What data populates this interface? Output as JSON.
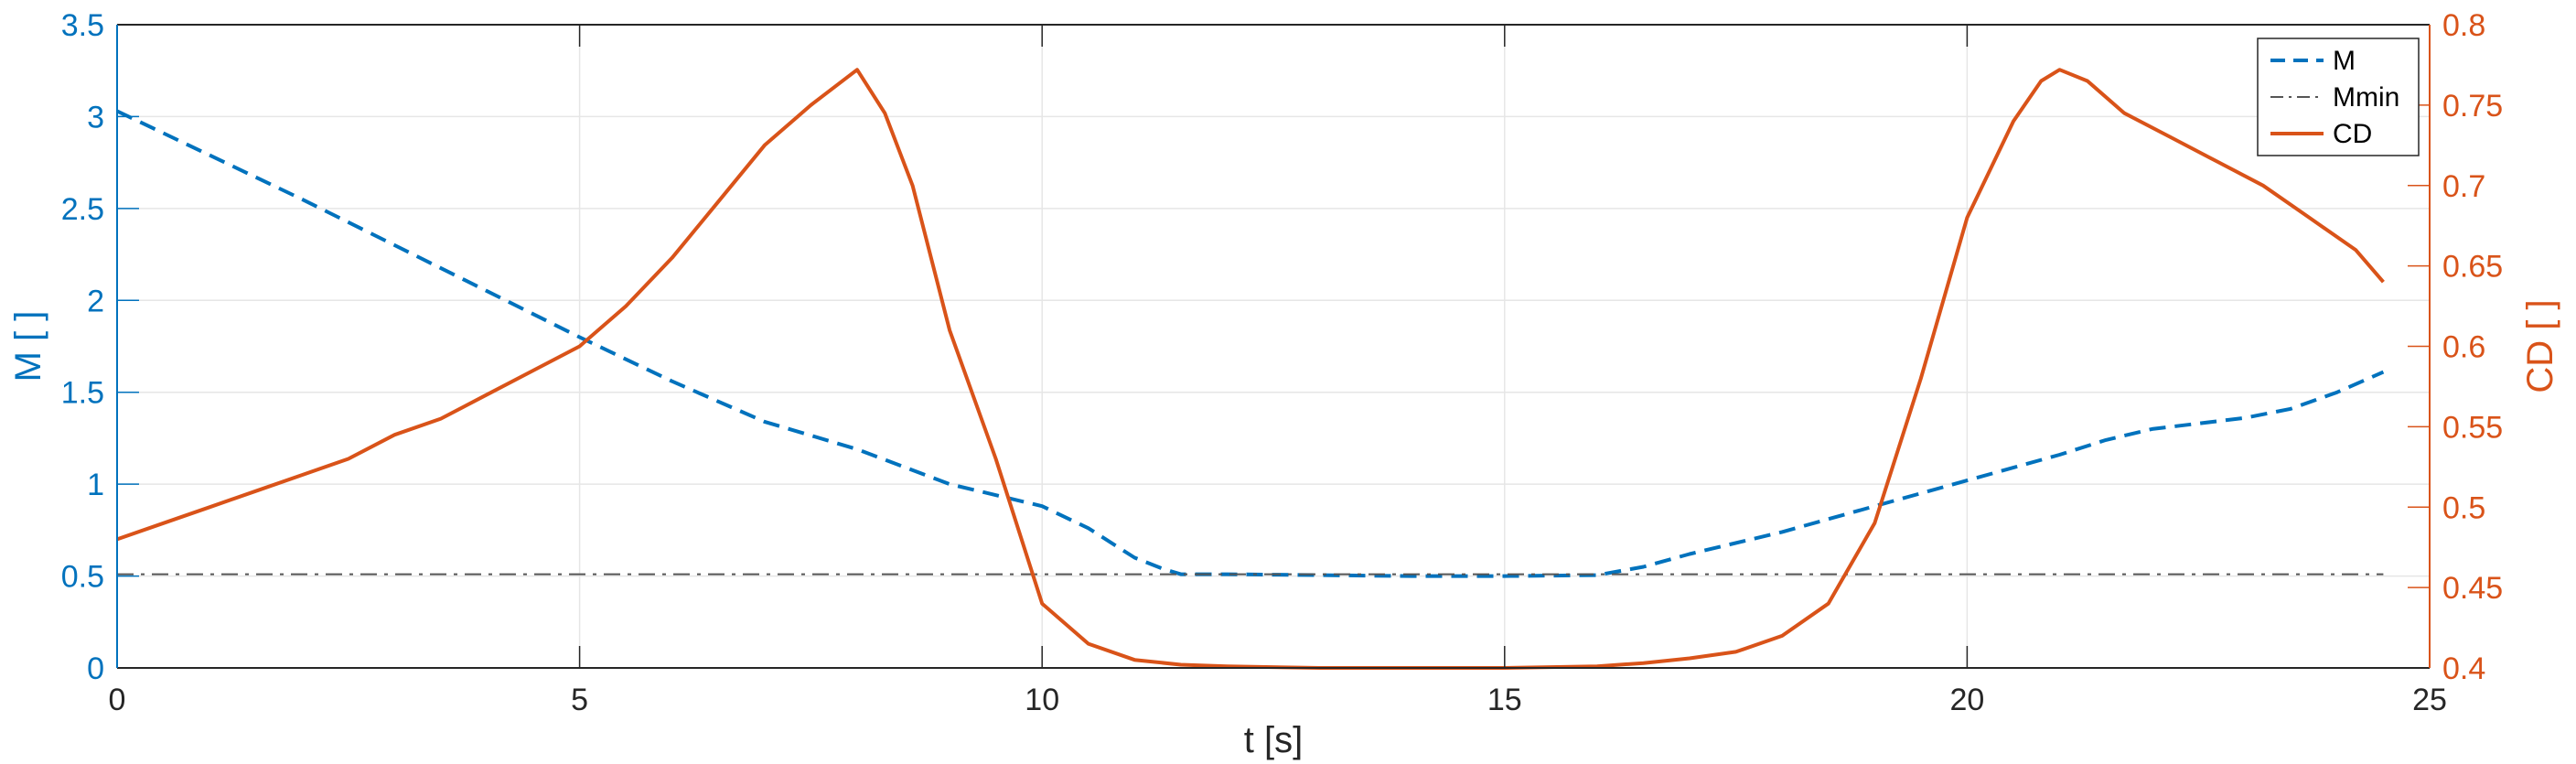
{
  "chart_data": {
    "type": "line",
    "title": "",
    "xlabel": "t [s]",
    "ylabel_left": "M [ ]",
    "ylabel_right": "CD [ ]",
    "xlim": [
      0,
      25
    ],
    "ylim_left": [
      0,
      3.5
    ],
    "ylim_right": [
      0.4,
      0.8
    ],
    "xticks": [
      "0",
      "5",
      "10",
      "15",
      "20",
      "25"
    ],
    "yticks_left": [
      "0",
      "0.5",
      "1",
      "1.5",
      "2",
      "2.5",
      "3",
      "3.5"
    ],
    "yticks_right": [
      "0.4",
      "0.45",
      "0.5",
      "0.55",
      "0.6",
      "0.65",
      "0.7",
      "0.75",
      "0.8"
    ],
    "grid": true,
    "legend_position": "top-right",
    "colors": {
      "left_axis": "#0072BD",
      "right_axis": "#D95319",
      "mmin": "#555555",
      "axes": "#262626",
      "grid": "#E6E6E6"
    },
    "series": [
      {
        "name": "M",
        "axis": "left",
        "style": "dashed",
        "color": "#0072BD",
        "x": [
          0,
          1,
          2,
          3,
          4,
          5,
          6,
          7,
          8,
          9,
          10,
          10.5,
          11,
          11.3,
          11.5,
          12,
          13,
          14,
          15,
          16,
          16.5,
          17,
          18,
          19,
          20,
          21,
          21.5,
          22,
          23,
          23.5,
          24,
          24.5
        ],
        "y": [
          3.03,
          2.79,
          2.55,
          2.3,
          2.05,
          1.8,
          1.56,
          1.34,
          1.19,
          1.0,
          0.88,
          0.76,
          0.6,
          0.54,
          0.51,
          0.51,
          0.505,
          0.5,
          0.5,
          0.505,
          0.55,
          0.62,
          0.74,
          0.88,
          1.02,
          1.16,
          1.24,
          1.3,
          1.36,
          1.41,
          1.5,
          1.61
        ]
      },
      {
        "name": "Mmin",
        "axis": "left",
        "style": "dashdot",
        "color": "#555555",
        "x": [
          0,
          24.5
        ],
        "y": [
          0.51,
          0.51
        ]
      },
      {
        "name": "CD",
        "axis": "right",
        "style": "solid",
        "color": "#D95319",
        "x": [
          0,
          0.5,
          1,
          1.5,
          2,
          2.5,
          3,
          3.5,
          4,
          4.5,
          5,
          5.5,
          6,
          6.5,
          7,
          7.5,
          8,
          8.3,
          8.6,
          9,
          9.5,
          10,
          10.5,
          11,
          11.5,
          12,
          13,
          14,
          15,
          16,
          16.5,
          17,
          17.5,
          18,
          18.5,
          19,
          19.5,
          20,
          20.5,
          20.8,
          21,
          21.3,
          21.7,
          22.2,
          22.7,
          23.2,
          23.7,
          24.2,
          24.5
        ],
        "y": [
          0.48,
          0.49,
          0.5,
          0.51,
          0.52,
          0.53,
          0.545,
          0.555,
          0.57,
          0.585,
          0.6,
          0.625,
          0.655,
          0.69,
          0.725,
          0.75,
          0.772,
          0.745,
          0.7,
          0.61,
          0.53,
          0.44,
          0.415,
          0.405,
          0.402,
          0.401,
          0.4,
          0.4,
          0.4,
          0.401,
          0.403,
          0.406,
          0.41,
          0.42,
          0.44,
          0.49,
          0.58,
          0.68,
          0.74,
          0.765,
          0.772,
          0.765,
          0.745,
          0.73,
          0.715,
          0.7,
          0.68,
          0.66,
          0.64
        ]
      }
    ]
  }
}
